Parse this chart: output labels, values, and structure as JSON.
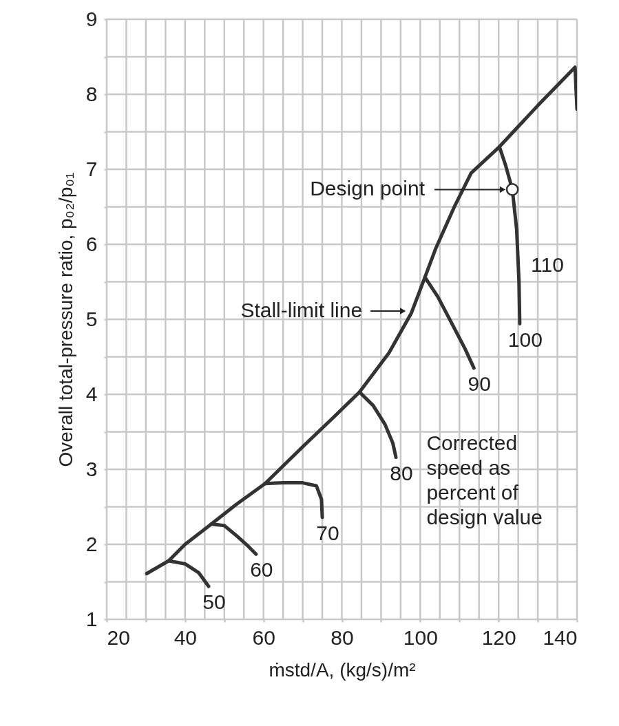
{
  "chart_data": {
    "type": "line",
    "xlabel": "ṁstd/A, (kg/s)/m²",
    "ylabel": "Overall total-pressure ratio, p₀₂/p₀₁",
    "xlim": [
      20,
      140
    ],
    "xticks": [
      20,
      {
        "value": 25,
        "label": null
      },
      {
        "value": 30,
        "label": null
      },
      {
        "value": 35,
        "label": null
      },
      40,
      {
        "value": 45,
        "label": null
      },
      {
        "value": 50,
        "label": null
      },
      {
        "value": 55,
        "label": null
      },
      60,
      {
        "value": 65,
        "label": null
      },
      {
        "value": 70,
        "label": null
      },
      {
        "value": 75,
        "label": null
      },
      80,
      {
        "value": 85,
        "label": null
      },
      {
        "value": 90,
        "label": null
      },
      {
        "value": 95,
        "label": null
      },
      100,
      {
        "value": 105,
        "label": null
      },
      {
        "value": 110,
        "label": null
      },
      {
        "value": 115,
        "label": null
      },
      120,
      {
        "value": 125,
        "label": null
      },
      {
        "value": 130,
        "label": null
      },
      {
        "value": 135,
        "label": null
      },
      140
    ],
    "ylim": [
      1,
      9
    ],
    "yticks": [
      1,
      {
        "value": 1.5,
        "label": null
      },
      2,
      {
        "value": 2.5,
        "label": null
      },
      3,
      {
        "value": 3.5,
        "label": null
      },
      4,
      {
        "value": 4.5,
        "label": null
      },
      5,
      {
        "value": 5.5,
        "label": null
      },
      6,
      {
        "value": 6.5,
        "label": null
      },
      7,
      {
        "value": 7.5,
        "label": null
      },
      8,
      {
        "value": 8.5,
        "label": null
      },
      9
    ],
    "grid": true,
    "line_style": "solid",
    "series": [
      {
        "type": "line",
        "color": "#333333",
        "x": [
          30.2,
          35.8,
          40,
          46.7,
          53,
          60.4,
          70,
          78,
          84.5,
          92,
          97.7,
          101.2,
          104,
          108.7,
          113,
          120.2,
          130,
          139.5,
          140
        ],
        "values": [
          1.61,
          1.78,
          2.0,
          2.27,
          2.53,
          2.81,
          3.3,
          3.7,
          4.03,
          4.55,
          5.08,
          5.56,
          5.95,
          6.5,
          6.95,
          7.3,
          7.85,
          8.36,
          7.8
        ]
      },
      {
        "type": "line",
        "name": "50",
        "color": "#333333",
        "x": [
          35.8,
          40,
          43.5,
          46.0
        ],
        "values": [
          1.78,
          1.74,
          1.62,
          1.44
        ]
      },
      {
        "type": "line",
        "name": "60",
        "color": "#333333",
        "x": [
          46.7,
          50,
          53,
          56,
          58.1
        ],
        "values": [
          2.27,
          2.25,
          2.12,
          1.98,
          1.87
        ]
      },
      {
        "type": "line",
        "name": "70",
        "color": "#333333",
        "x": [
          60.4,
          65,
          70,
          73.5,
          74.8,
          75.0
        ],
        "values": [
          2.81,
          2.82,
          2.82,
          2.78,
          2.6,
          2.36
        ]
      },
      {
        "type": "line",
        "name": "80",
        "color": "#333333",
        "x": [
          84.5,
          88,
          91,
          93,
          93.8
        ],
        "values": [
          4.03,
          3.85,
          3.6,
          3.35,
          3.16
        ]
      },
      {
        "type": "line",
        "name": "90",
        "color": "#333333",
        "x": [
          101.2,
          104.5,
          108,
          111.5,
          113.7
        ],
        "values": [
          5.56,
          5.3,
          4.95,
          4.6,
          4.35
        ]
      },
      {
        "type": "line",
        "name": "100",
        "color": "#333333",
        "x": [
          120.2,
          121.8,
          123.5,
          124.6,
          125.2,
          125.4
        ],
        "values": [
          7.3,
          7.05,
          6.73,
          6.2,
          5.5,
          4.94
        ]
      },
      {
        "type": "scatter",
        "marker": "circle",
        "color": "#333333",
        "x": [
          123.5
        ],
        "values": [
          6.73
        ]
      }
    ],
    "annotations": [
      "Corrected speed as percent of design value",
      {
        "text": "Design point",
        "x": 121.9,
        "y": 6.73
      },
      {
        "text": "Stall-limit line",
        "x": 96.8,
        "y": 5.11
      },
      "110"
    ]
  }
}
